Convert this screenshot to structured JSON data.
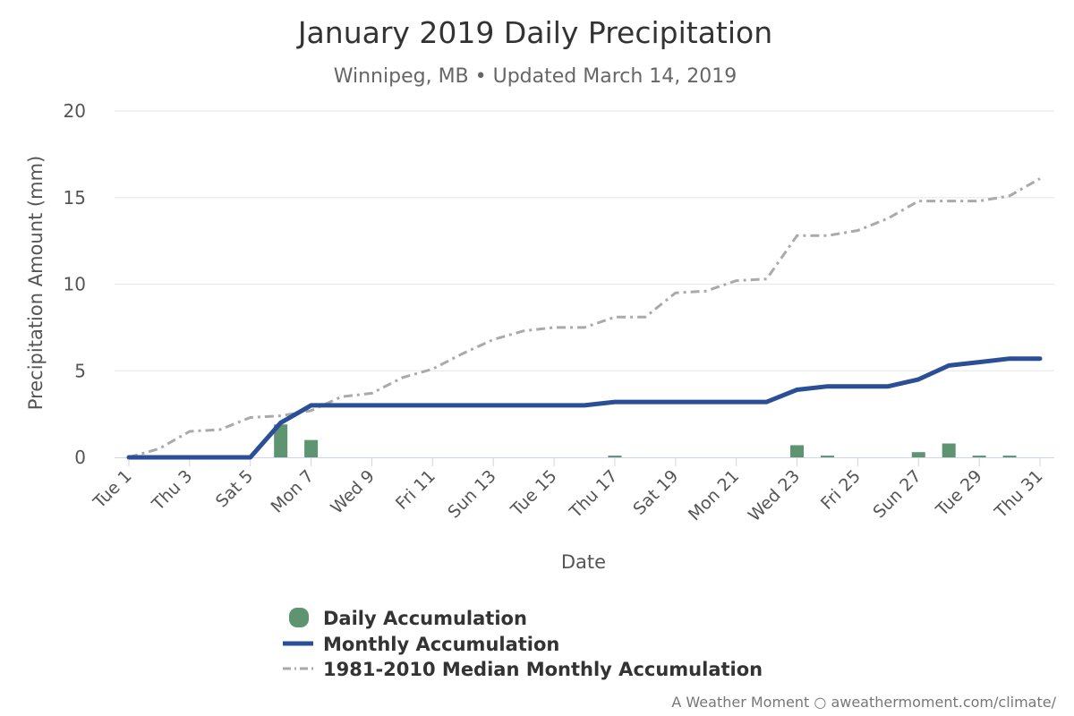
{
  "chart_data": {
    "type": "bar+line",
    "title": "January 2019 Daily Precipitation",
    "subtitle": "Winnipeg, MB • Updated March 14, 2019",
    "xlabel": "Date",
    "ylabel": "Precipitation Amount (mm)",
    "ylim": [
      0,
      20
    ],
    "yticks": [
      0,
      5,
      10,
      15,
      20
    ],
    "grid": true,
    "legend_position": "bottom",
    "days": [
      1,
      2,
      3,
      4,
      5,
      6,
      7,
      8,
      9,
      10,
      11,
      12,
      13,
      14,
      15,
      16,
      17,
      18,
      19,
      20,
      21,
      22,
      23,
      24,
      25,
      26,
      27,
      28,
      29,
      30,
      31
    ],
    "tick_labels": [
      "Tue 1",
      "Thu 3",
      "Sat 5",
      "Mon 7",
      "Wed 9",
      "Fri 11",
      "Sun 13",
      "Tue 15",
      "Thu 17",
      "Sat 19",
      "Mon 21",
      "Wed 23",
      "Fri 25",
      "Sun 27",
      "Tue 29",
      "Thu 31"
    ],
    "series": [
      {
        "name": "Daily Accumulation",
        "type": "bar",
        "color": "#5f9470",
        "values": [
          0,
          0,
          0,
          0,
          0,
          1.9,
          1.0,
          0,
          0,
          0,
          0,
          0,
          0,
          0,
          0,
          0,
          0.1,
          0,
          0,
          0,
          0,
          0,
          0.7,
          0.1,
          0,
          0,
          0.3,
          0.8,
          0.1,
          0.1,
          0
        ]
      },
      {
        "name": "Monthly Accumulation",
        "type": "line",
        "color": "#2b4f96",
        "values": [
          0,
          0,
          0,
          0,
          0,
          2.0,
          3.0,
          3.0,
          3.0,
          3.0,
          3.0,
          3.0,
          3.0,
          3.0,
          3.0,
          3.0,
          3.2,
          3.2,
          3.2,
          3.2,
          3.2,
          3.2,
          3.9,
          4.1,
          4.1,
          4.1,
          4.5,
          5.3,
          5.5,
          5.7,
          5.7
        ]
      },
      {
        "name": "1981-2010 Median Monthly Accumulation",
        "type": "line",
        "dash": "dash-dot",
        "color": "#aaaaaa",
        "values": [
          0,
          0.5,
          1.5,
          1.6,
          2.3,
          2.4,
          2.7,
          3.5,
          3.7,
          4.6,
          5.1,
          6.0,
          6.8,
          7.3,
          7.5,
          7.5,
          8.1,
          8.1,
          9.5,
          9.6,
          10.2,
          10.3,
          12.8,
          12.8,
          13.1,
          13.8,
          14.8,
          14.8,
          14.8,
          15.1,
          16.1
        ]
      }
    ],
    "credit": "A Weather Moment ○ aweathermoment.com/climate/"
  }
}
